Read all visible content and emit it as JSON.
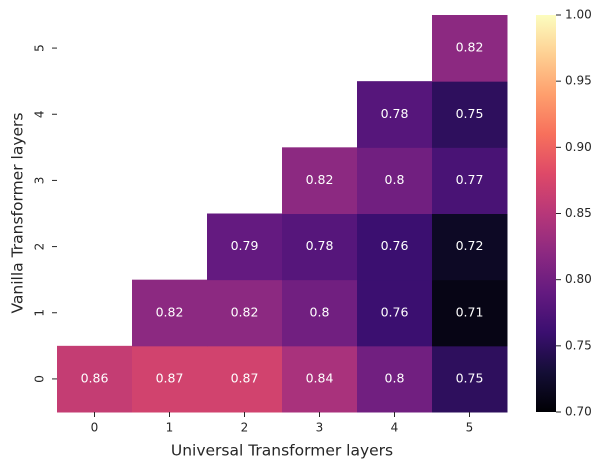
{
  "chart_data": {
    "type": "heatmap",
    "xlabel": "Universal Transformer layers",
    "ylabel": "Vanilla Transformer layers",
    "x_categories": [
      "0",
      "1",
      "2",
      "3",
      "4",
      "5"
    ],
    "y_categories": [
      "0",
      "1",
      "2",
      "3",
      "4",
      "5"
    ],
    "values": [
      [
        0.86,
        0.87,
        0.87,
        0.84,
        0.8,
        0.75
      ],
      [
        null,
        0.82,
        0.82,
        0.8,
        0.76,
        0.71
      ],
      [
        null,
        null,
        0.79,
        0.78,
        0.76,
        0.72
      ],
      [
        null,
        null,
        null,
        0.82,
        0.8,
        0.77
      ],
      [
        null,
        null,
        null,
        null,
        0.78,
        0.75
      ],
      [
        null,
        null,
        null,
        null,
        null,
        0.82
      ]
    ],
    "colormap": "magma",
    "clim": [
      0.7,
      1
    ],
    "cticks": [
      {
        "value": 0.7,
        "label": "0.70"
      },
      0.75,
      {
        "value": 0.8,
        "label": "0.80"
      },
      0.85,
      {
        "value": 0.9,
        "label": "0.90"
      },
      0.95,
      {
        "value": 1,
        "label": "1.00"
      }
    ]
  }
}
